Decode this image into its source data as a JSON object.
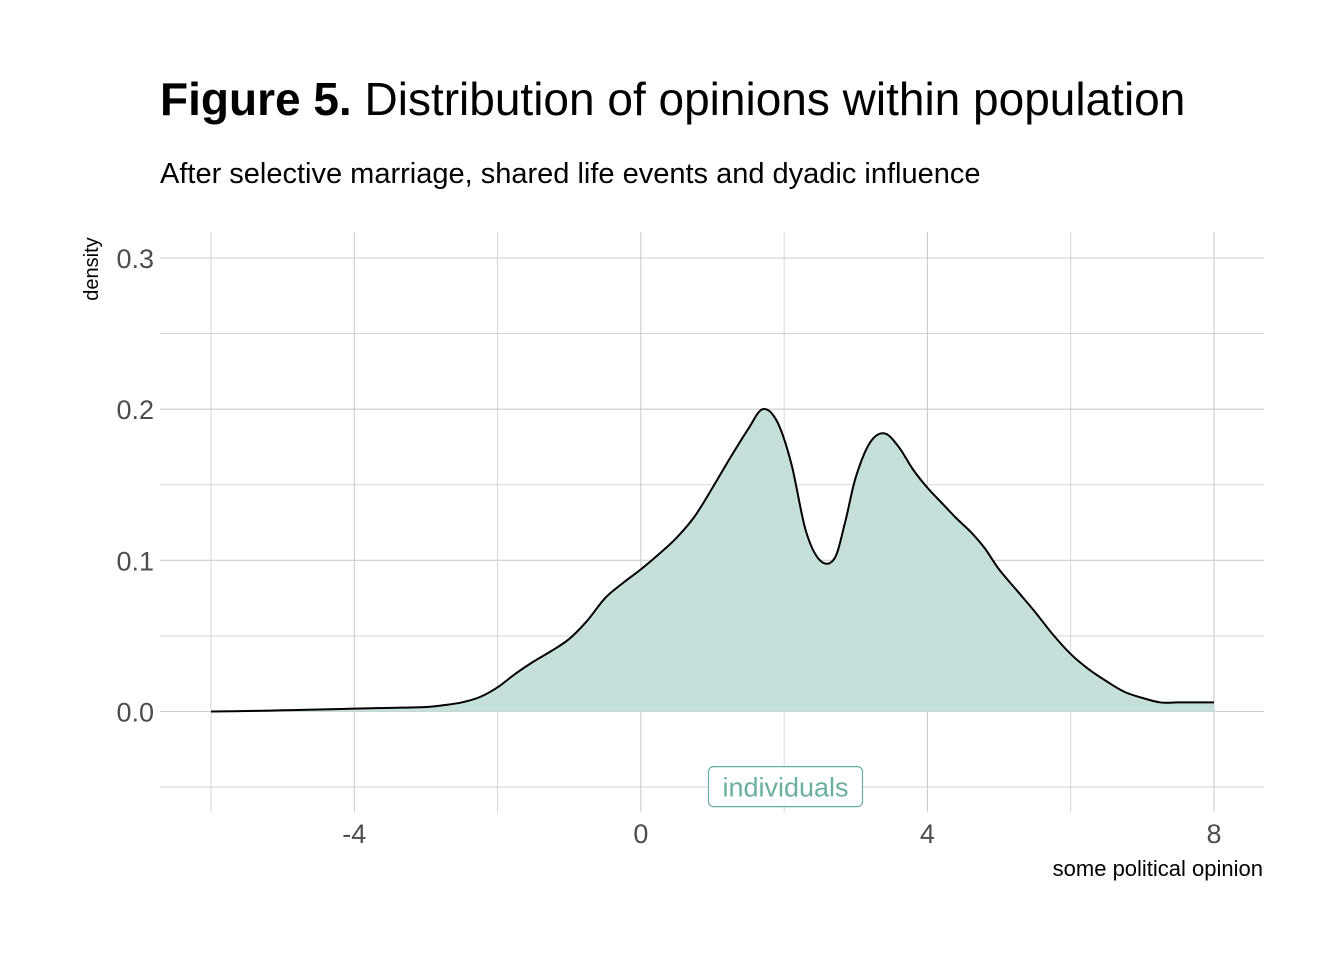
{
  "title": {
    "bold": "Figure 5.",
    "rest": " Distribution of opinions within population"
  },
  "subtitle": "After selective marriage, shared life events and dyadic influence",
  "colors": {
    "fill": "#c5e0db",
    "line": "#000000",
    "grid": "#cccccc",
    "label": "#6aafa0",
    "tick": "#4d4d4d"
  },
  "chart_data": {
    "type": "area",
    "xlabel": "some political opinion",
    "ylabel": "density",
    "xlim": [
      -6,
      8
    ],
    "ylim": [
      -0.05,
      0.3
    ],
    "xticks": [
      -4,
      0,
      4,
      8
    ],
    "xtick_labels": [
      "-4",
      "0",
      "4",
      "8"
    ],
    "yticks": [
      0.0,
      0.1,
      0.2,
      0.3
    ],
    "ytick_labels": [
      "0.0",
      "0.1",
      "0.2",
      "0.3"
    ],
    "grid": true,
    "annotation": {
      "text": "individuals",
      "x": 1.0,
      "y": -0.051
    },
    "series": [
      {
        "x": [
          -6.0,
          -5.5,
          -5.0,
          -4.5,
          -4.0,
          -3.5,
          -3.0,
          -2.75,
          -2.5,
          -2.25,
          -2.0,
          -1.75,
          -1.5,
          -1.25,
          -1.0,
          -0.75,
          -0.5,
          -0.25,
          0.0,
          0.25,
          0.5,
          0.75,
          1.0,
          1.25,
          1.5,
          1.7,
          1.9,
          2.1,
          2.3,
          2.5,
          2.7,
          2.85,
          3.0,
          3.2,
          3.4,
          3.6,
          3.8,
          4.0,
          4.2,
          4.4,
          4.6,
          4.8,
          5.0,
          5.25,
          5.5,
          5.75,
          6.0,
          6.25,
          6.5,
          6.75,
          7.0,
          7.25,
          7.5,
          7.75,
          8.0
        ],
        "y": [
          0.0,
          0.0003,
          0.0008,
          0.0013,
          0.0019,
          0.0024,
          0.003,
          0.0042,
          0.006,
          0.0095,
          0.016,
          0.025,
          0.033,
          0.04,
          0.048,
          0.06,
          0.075,
          0.085,
          0.094,
          0.104,
          0.115,
          0.129,
          0.148,
          0.168,
          0.187,
          0.2,
          0.192,
          0.164,
          0.12,
          0.1,
          0.101,
          0.125,
          0.155,
          0.178,
          0.184,
          0.175,
          0.16,
          0.148,
          0.138,
          0.128,
          0.119,
          0.108,
          0.094,
          0.08,
          0.066,
          0.051,
          0.038,
          0.028,
          0.02,
          0.013,
          0.009,
          0.006,
          0.006,
          0.006,
          0.006
        ]
      }
    ]
  }
}
